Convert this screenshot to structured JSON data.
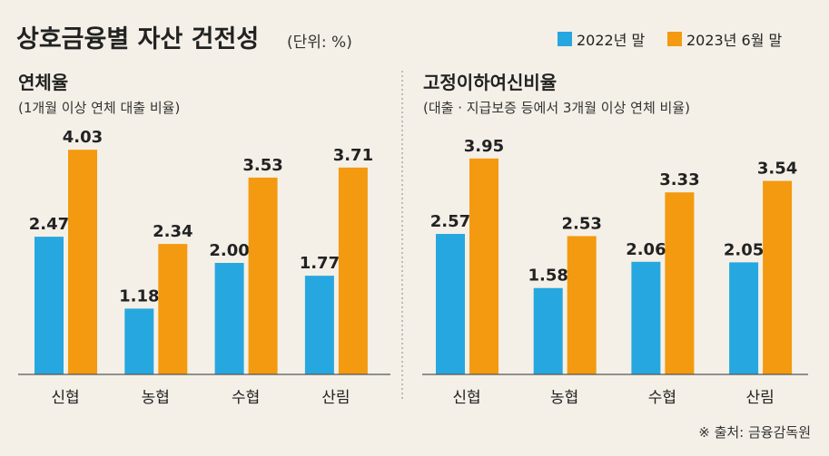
{
  "title": "상호금융별 자산 건전성",
  "unit": "(단위: %)",
  "legend": [
    "2022년 말",
    "2023년 6월 말"
  ],
  "colors": {
    "series1": "#27a7df",
    "series2": "#f39a10",
    "background": "#f4f0e7"
  },
  "source": "※ 출처: 금융감독원",
  "chart_data": [
    {
      "type": "bar",
      "title": "연체율",
      "subtitle": "(1개월 이상 연체 대출 비율)",
      "categories": [
        "신협",
        "농협",
        "수협",
        "산림"
      ],
      "series": [
        {
          "name": "2022년 말",
          "values": [
            2.47,
            1.18,
            2.0,
            1.77
          ],
          "labels": [
            "2.47",
            "1.18",
            "2.00",
            "1.77"
          ]
        },
        {
          "name": "2023년 6월 말",
          "values": [
            4.03,
            2.34,
            3.53,
            3.71
          ],
          "labels": [
            "4.03",
            "2.34",
            "3.53",
            "3.71"
          ]
        }
      ],
      "ylim": [
        0,
        5
      ]
    },
    {
      "type": "bar",
      "title": "고정이하여신비율",
      "subtitle": "(대출 · 지급보증 등에서 3개월 이상 연체 비율)",
      "categories": [
        "신협",
        "농협",
        "수협",
        "산림"
      ],
      "series": [
        {
          "name": "2022년 말",
          "values": [
            2.57,
            1.58,
            2.06,
            2.05
          ],
          "labels": [
            "2.57",
            "1.58",
            "2.06",
            "2.05"
          ]
        },
        {
          "name": "2023년 6월 말",
          "values": [
            3.95,
            2.53,
            3.33,
            3.54
          ],
          "labels": [
            "3.95",
            "2.53",
            "3.33",
            "3.54"
          ]
        }
      ],
      "ylim": [
        0,
        5
      ]
    }
  ]
}
